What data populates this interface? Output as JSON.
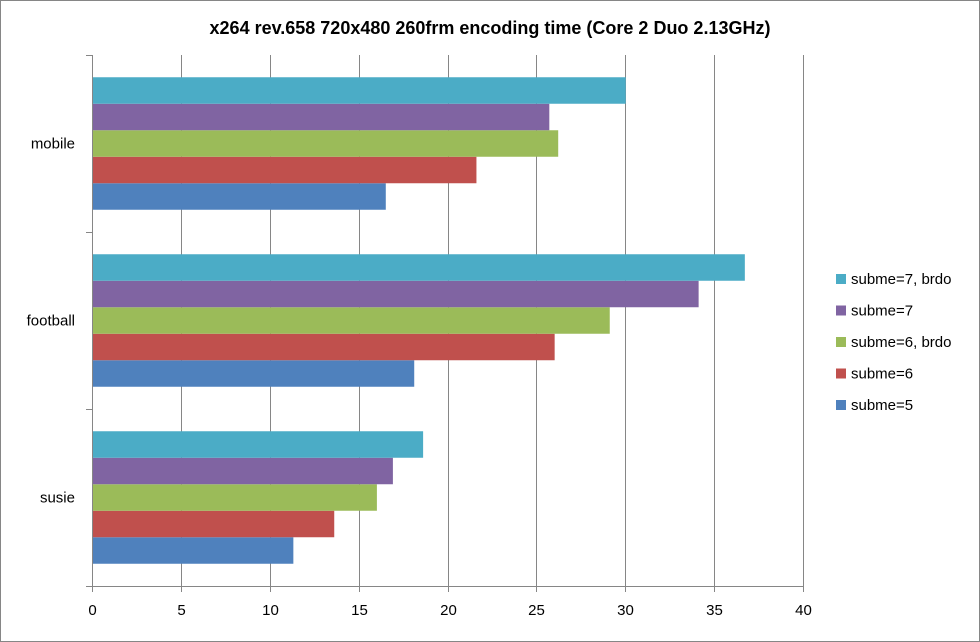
{
  "chart_data": {
    "type": "bar",
    "orientation": "horizontal",
    "title": "x264 rev.658  720x480  260frm encoding time (Core 2 Duo 2.13GHz)",
    "xlabel": "",
    "ylabel": "",
    "xlim": [
      0,
      40
    ],
    "x_ticks": [
      0,
      5,
      10,
      15,
      20,
      25,
      30,
      35,
      40
    ],
    "grid": "vertical major gridlines",
    "legend_position": "right",
    "categories": [
      "mobile",
      "football",
      "susie"
    ],
    "series": [
      {
        "name": "subme=5",
        "color": "#4F81BD",
        "values": [
          16.5,
          18.1,
          11.3
        ]
      },
      {
        "name": "subme=6",
        "color": "#C0504D",
        "values": [
          21.6,
          26.0,
          13.6
        ]
      },
      {
        "name": "subme=6, brdo",
        "color": "#9BBB59",
        "values": [
          26.2,
          29.1,
          16.0
        ]
      },
      {
        "name": "subme=7",
        "color": "#8064A2",
        "values": [
          25.7,
          34.1,
          16.9
        ]
      },
      {
        "name": "subme=7, brdo",
        "color": "#4BACC6",
        "values": [
          30.0,
          36.7,
          18.6
        ]
      }
    ]
  }
}
